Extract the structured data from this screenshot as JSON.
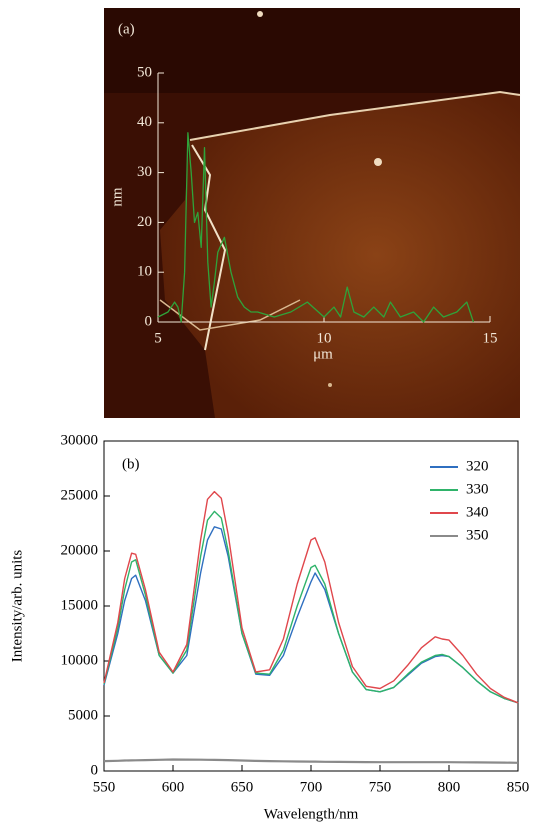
{
  "chart_data": [
    {
      "type": "line",
      "panel_label": "(a)",
      "x_label": "μm",
      "y_label": "nm",
      "x": [
        5.0,
        5.3,
        5.5,
        5.6,
        5.7,
        5.8,
        5.9,
        6.0,
        6.1,
        6.2,
        6.3,
        6.4,
        6.5,
        6.6,
        6.7,
        6.8,
        7.0,
        7.2,
        7.4,
        7.6,
        7.8,
        8.0,
        8.5,
        9.0,
        9.5,
        10.0,
        10.3,
        10.5,
        10.7,
        10.9,
        11.2,
        11.5,
        11.8,
        12.0,
        12.3,
        12.7,
        13.0,
        13.3,
        13.6,
        14.0,
        14.3,
        14.5
      ],
      "series": [
        {
          "color": "#2fa33a",
          "values": [
            1,
            2,
            4,
            3,
            0,
            10,
            38,
            30,
            20,
            22,
            15,
            35,
            12,
            3,
            8,
            14,
            17,
            10,
            5,
            3,
            2,
            2,
            1,
            2,
            4,
            1,
            3,
            1,
            7,
            2,
            1,
            3,
            1,
            4,
            1,
            2,
            0,
            3,
            1,
            2,
            4,
            0
          ]
        }
      ],
      "xlim": [
        5,
        15
      ],
      "xticks": [
        5,
        10,
        15
      ],
      "ylim": [
        0,
        50
      ],
      "yticks": [
        0,
        10,
        20,
        30,
        40,
        50
      ]
    },
    {
      "type": "line",
      "panel_label": "(b)",
      "x_label": "Wavelength/nm",
      "y_label": "Intensity/arb. units",
      "legend": "upper right",
      "x": [
        550,
        560,
        565,
        570,
        573,
        580,
        590,
        600,
        610,
        620,
        625,
        630,
        635,
        640,
        650,
        660,
        670,
        680,
        690,
        700,
        703,
        710,
        720,
        730,
        740,
        750,
        760,
        770,
        780,
        790,
        795,
        800,
        810,
        820,
        830,
        840,
        850
      ],
      "series": [
        {
          "name": "320",
          "color": "#2f6fc0",
          "values": [
            7800,
            12500,
            15500,
            17500,
            17800,
            15500,
            10500,
            8900,
            10500,
            18000,
            21000,
            22200,
            22000,
            19500,
            12500,
            8800,
            8700,
            10500,
            14000,
            17200,
            18000,
            16500,
            12500,
            9000,
            7400,
            7200,
            7600,
            8700,
            9800,
            10400,
            10500,
            10400,
            9400,
            8200,
            7200,
            6600,
            6200
          ]
        },
        {
          "name": "330",
          "color": "#2fb36a",
          "values": [
            7900,
            13000,
            16500,
            19000,
            19200,
            16000,
            10500,
            8900,
            11000,
            19500,
            22800,
            23600,
            23000,
            20000,
            12500,
            8900,
            8800,
            11000,
            15000,
            18500,
            18700,
            17000,
            12500,
            9000,
            7400,
            7200,
            7600,
            8800,
            9900,
            10500,
            10600,
            10400,
            9400,
            8200,
            7200,
            6600,
            6200
          ]
        },
        {
          "name": "340",
          "color": "#e0474c",
          "values": [
            8000,
            13500,
            17500,
            19800,
            19700,
            16500,
            10800,
            9000,
            11500,
            21000,
            24700,
            25400,
            24800,
            21500,
            13000,
            9000,
            9200,
            12000,
            17000,
            21000,
            21200,
            19000,
            13500,
            9500,
            7700,
            7500,
            8200,
            9600,
            11200,
            12200,
            12000,
            11900,
            10500,
            8800,
            7500,
            6700,
            6200
          ]
        },
        {
          "name": "350",
          "color": "#8a8a8a",
          "values": [
            900,
            930,
            950,
            960,
            970,
            990,
            1020,
            1050,
            1040,
            1030,
            1020,
            1010,
            1000,
            990,
            950,
            920,
            900,
            880,
            860,
            850,
            850,
            840,
            830,
            820,
            810,
            800,
            800,
            800,
            800,
            800,
            800,
            800,
            790,
            780,
            770,
            760,
            750
          ]
        }
      ],
      "xlim": [
        550,
        850
      ],
      "xticks": [
        550,
        600,
        650,
        700,
        750,
        800,
        850
      ],
      "ylim": [
        0,
        30000
      ],
      "yticks": [
        0,
        5000,
        10000,
        15000,
        20000,
        25000,
        30000
      ]
    }
  ]
}
